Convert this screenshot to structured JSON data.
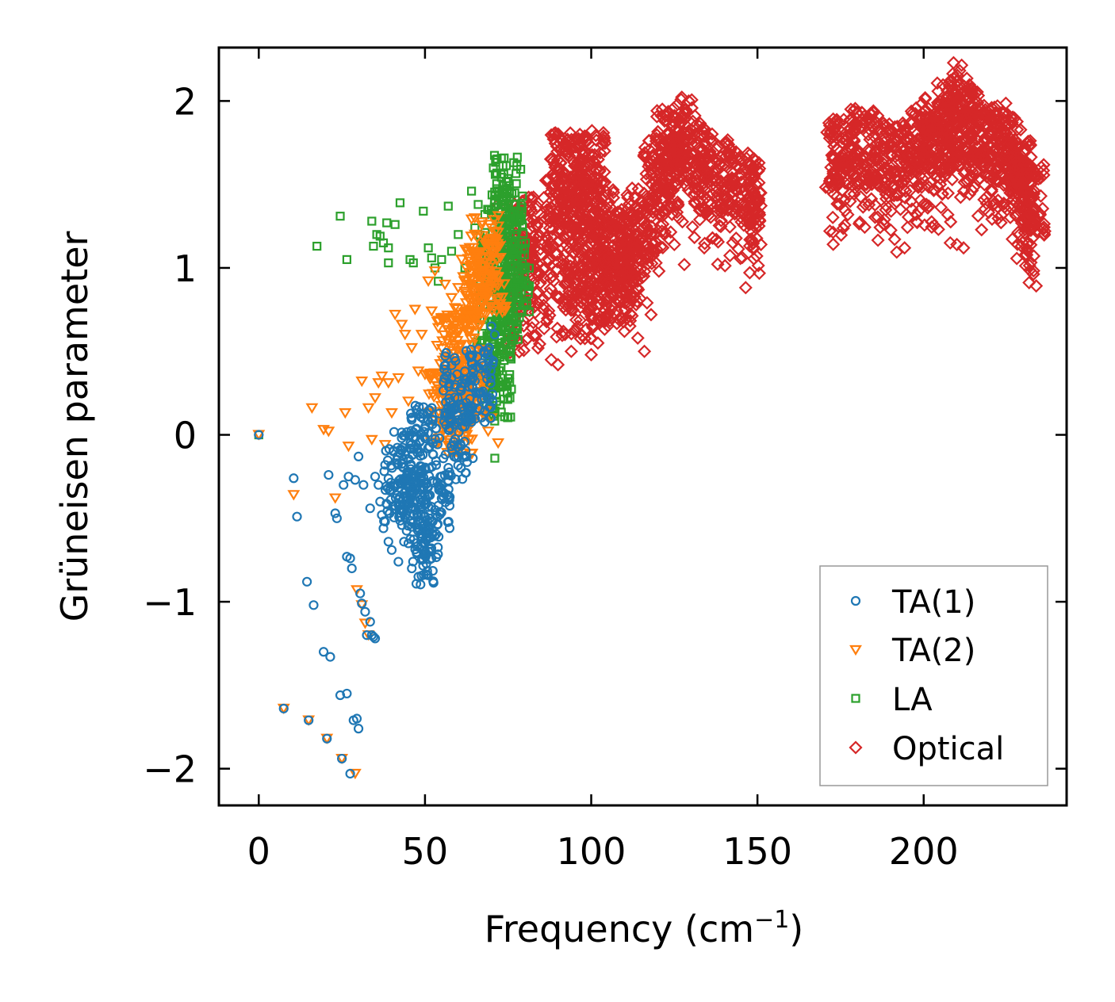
{
  "chart_data": {
    "type": "scatter",
    "xlabel": "Frequency (cm",
    "xlabel_sup": "−1",
    "xlabel_close": ")",
    "ylabel": "Grüneisen parameter",
    "xlim": [
      -12,
      243
    ],
    "ylim": [
      -2.22,
      2.32
    ],
    "xticks": [
      0,
      50,
      100,
      150,
      200
    ],
    "xtick_labels": [
      "0",
      "50",
      "100",
      "150",
      "200"
    ],
    "yticks": [
      -2,
      -1,
      0,
      1,
      2
    ],
    "ytick_labels": [
      "−2",
      "−1",
      "0",
      "1",
      "2"
    ],
    "legend_position": "lower-right",
    "series": [
      {
        "name": "TA(1)",
        "marker": "circle",
        "color": "#1f77b4",
        "points": [
          [
            0,
            0
          ],
          [
            7.5,
            -1.64
          ],
          [
            10.5,
            -0.26
          ],
          [
            11.5,
            -0.49
          ],
          [
            14.5,
            -0.88
          ],
          [
            15,
            -1.71
          ],
          [
            16.5,
            -1.02
          ],
          [
            19.5,
            -1.3
          ],
          [
            20.5,
            -1.82
          ],
          [
            21.5,
            -1.33
          ],
          [
            21,
            -0.24
          ],
          [
            23,
            -0.47
          ],
          [
            23.5,
            -0.5
          ],
          [
            24.5,
            -1.56
          ],
          [
            25,
            -1.94
          ],
          [
            25.5,
            -0.3
          ],
          [
            26.5,
            -1.55
          ],
          [
            26.5,
            -0.73
          ],
          [
            27,
            -0.25
          ],
          [
            27.5,
            -0.74
          ],
          [
            27.5,
            -2.03
          ],
          [
            28,
            -0.8
          ],
          [
            28.5,
            -1.71
          ],
          [
            29,
            -0.27
          ],
          [
            29.5,
            -1.7
          ],
          [
            30,
            -1.76
          ],
          [
            30,
            -0.13
          ],
          [
            30.5,
            -0.95
          ],
          [
            31,
            -1.01
          ],
          [
            31.5,
            -0.3
          ],
          [
            32,
            -1.06
          ],
          [
            32.5,
            -1.2
          ],
          [
            33.5,
            -1.12
          ],
          [
            33.5,
            -0.44
          ],
          [
            34,
            -1.2
          ],
          [
            34.5,
            -1.21
          ],
          [
            35,
            -1.22
          ],
          [
            35,
            -0.25
          ],
          [
            36,
            -0.3
          ],
          [
            36.5,
            -0.4
          ],
          [
            37,
            -0.48
          ],
          [
            37.5,
            -0.56
          ],
          [
            38,
            -0.52
          ],
          [
            38,
            -0.18
          ],
          [
            39,
            -0.64
          ],
          [
            40,
            -0.69
          ],
          [
            40.5,
            -0.1
          ],
          [
            41,
            -0.31
          ],
          [
            42,
            -0.76
          ],
          [
            43,
            -0.02
          ],
          [
            44,
            -0.12
          ],
          [
            45,
            -0.65
          ],
          [
            46,
            -0.44
          ],
          [
            46,
            0.09
          ],
          [
            47.5,
            -0.71
          ],
          [
            48,
            -0.85
          ],
          [
            49,
            -0.75
          ],
          [
            50,
            -0.72
          ],
          [
            52,
            -0.52
          ],
          [
            53,
            -0.45
          ],
          [
            55,
            -0.38
          ],
          [
            57,
            -0.28
          ],
          [
            60,
            -0.13
          ],
          [
            62,
            0.05
          ],
          [
            64,
            0.15
          ],
          [
            66,
            0.25
          ],
          [
            68,
            0.49
          ],
          [
            70,
            0.65
          ],
          [
            71,
            0.6
          ]
        ],
        "cloud": [
          [
            42,
            -0.3
          ],
          [
            47,
            -0.45
          ],
          [
            50,
            -0.68
          ],
          [
            53,
            -0.4
          ],
          [
            60,
            -0.05
          ],
          [
            66,
            0.3
          ],
          [
            60,
            0.3
          ],
          [
            50,
            -0.05
          ],
          [
            45,
            -0.2
          ]
        ]
      },
      {
        "name": "TA(2)",
        "marker": "triangle-down",
        "color": "#ff7f0e",
        "points": [
          [
            0,
            0
          ],
          [
            7.5,
            -1.64
          ],
          [
            10.5,
            -0.36
          ],
          [
            15,
            -1.71
          ],
          [
            16,
            0.16
          ],
          [
            19.5,
            0.03
          ],
          [
            20.5,
            -1.82
          ],
          [
            21,
            0.02
          ],
          [
            23,
            -0.38
          ],
          [
            25,
            -1.94
          ],
          [
            26,
            0.13
          ],
          [
            27,
            -0.07
          ],
          [
            29,
            -2.03
          ],
          [
            29.5,
            -0.93
          ],
          [
            31,
            -1.02
          ],
          [
            31,
            0.32
          ],
          [
            32,
            -1.13
          ],
          [
            33,
            -1.2
          ],
          [
            33,
            0.16
          ],
          [
            34,
            -0.03
          ],
          [
            35,
            0.22
          ],
          [
            36,
            0.31
          ],
          [
            37,
            0.35
          ],
          [
            38,
            -0.06
          ],
          [
            39,
            0.31
          ],
          [
            40,
            0.13
          ],
          [
            41,
            0.72
          ],
          [
            42,
            0.34
          ],
          [
            43,
            0.66
          ],
          [
            44,
            0.6
          ],
          [
            45,
            0.2
          ],
          [
            46,
            0.52
          ],
          [
            47,
            0.75
          ],
          [
            48,
            0.38
          ],
          [
            49,
            0.6
          ],
          [
            50,
            0.36
          ],
          [
            51,
            0.92
          ],
          [
            52,
            0.74
          ],
          [
            53,
            0.98
          ],
          [
            54,
            0.64
          ],
          [
            55,
            0.7
          ],
          [
            56,
            0.9
          ],
          [
            57,
            0.45
          ],
          [
            58,
            0.82
          ],
          [
            59,
            0.76
          ],
          [
            60,
            0.88
          ],
          [
            61,
            1.05
          ],
          [
            62,
            0.65
          ],
          [
            63,
            1.1
          ],
          [
            64,
            0.9
          ],
          [
            65,
            1.2
          ],
          [
            66,
            0.72
          ],
          [
            67,
            0.3
          ],
          [
            68,
            0.5
          ],
          [
            69,
            0.02
          ],
          [
            70,
            0.1
          ],
          [
            72,
            -0.05
          ]
        ],
        "cloud": [
          [
            55,
            0.15
          ],
          [
            58,
            0.5
          ],
          [
            62,
            0.55
          ],
          [
            66,
            0.9
          ],
          [
            68,
            1.1
          ],
          [
            70,
            0.95
          ],
          [
            64,
            0.3
          ],
          [
            60,
            0.1
          ]
        ]
      },
      {
        "name": "LA",
        "marker": "square",
        "color": "#2ca02c",
        "points": [
          [
            0,
            0
          ],
          [
            17.5,
            1.13
          ],
          [
            24.5,
            1.31
          ],
          [
            26.5,
            1.05
          ],
          [
            34,
            1.28
          ],
          [
            34.5,
            1.13
          ],
          [
            35.5,
            1.2
          ],
          [
            36.5,
            1.19
          ],
          [
            37.5,
            1.15
          ],
          [
            38.5,
            1.27
          ],
          [
            39,
            1.12
          ],
          [
            39,
            1.03
          ],
          [
            41,
            1.26
          ],
          [
            42.5,
            1.39
          ],
          [
            45.5,
            1.05
          ],
          [
            46.5,
            1.03
          ],
          [
            49.5,
            1.34
          ],
          [
            51,
            1.12
          ],
          [
            52,
            1.06
          ],
          [
            53,
            1.0
          ],
          [
            54,
            0.92
          ],
          [
            55,
            1.05
          ],
          [
            57,
            1.37
          ],
          [
            58,
            1.1
          ],
          [
            60,
            1.2
          ],
          [
            62,
            1.0
          ],
          [
            64,
            1.46
          ],
          [
            65,
            1.24
          ],
          [
            66,
            1.38
          ],
          [
            67,
            0.98
          ],
          [
            68,
            1.32
          ],
          [
            69,
            1.1
          ],
          [
            70,
            0.6
          ],
          [
            71,
            -0.14
          ],
          [
            72,
            1.44
          ],
          [
            73,
            1.2
          ],
          [
            74,
            1.38
          ],
          [
            75,
            1.52
          ],
          [
            76,
            0.55
          ],
          [
            77,
            1.45
          ],
          [
            78,
            0.8
          ]
        ],
        "cloud": [
          [
            70,
            0.5
          ],
          [
            73,
            1.25
          ],
          [
            75,
            1.45
          ],
          [
            77,
            0.9
          ],
          [
            72,
            0.3
          ],
          [
            74,
            0.7
          ],
          [
            76,
            1.1
          ],
          [
            71,
            1.0
          ]
        ]
      },
      {
        "name": "Optical",
        "marker": "diamond",
        "color": "#d62728",
        "points": [
          [
            69,
            0.98
          ],
          [
            72,
            1.38
          ],
          [
            75,
            1.32
          ],
          [
            78,
            1.35
          ],
          [
            82,
            1.42
          ],
          [
            84,
            0.52
          ],
          [
            86,
            1.0
          ],
          [
            88,
            0.45
          ],
          [
            90,
            0.42
          ],
          [
            92,
            1.08
          ],
          [
            94,
            0.5
          ],
          [
            96,
            0.65
          ],
          [
            98,
            1.62
          ],
          [
            100,
            0.48
          ],
          [
            102,
            0.55
          ],
          [
            104,
            1.7
          ],
          [
            106,
            0.75
          ],
          [
            110,
            0.62
          ],
          [
            114,
            0.58
          ],
          [
            116,
            0.5
          ],
          [
            118,
            0.72
          ],
          [
            120,
            1.38
          ],
          [
            122,
            1.2
          ],
          [
            125,
            1.14
          ],
          [
            126,
            1.98
          ],
          [
            128,
            1.02
          ],
          [
            131,
            1.6
          ],
          [
            134,
            1.12
          ],
          [
            136,
            1.62
          ],
          [
            139,
            1.52
          ],
          [
            143,
            1.52
          ],
          [
            147,
            1.5
          ],
          [
            151,
            1.45
          ],
          [
            173,
            1.55
          ],
          [
            176,
            1.4
          ],
          [
            180,
            1.65
          ],
          [
            185,
            1.52
          ],
          [
            190,
            1.45
          ],
          [
            195,
            1.6
          ],
          [
            200,
            1.38
          ],
          [
            205,
            1.5
          ],
          [
            208,
            1.15
          ],
          [
            210,
            1.14
          ],
          [
            212,
            1.12
          ],
          [
            214,
            1.8
          ],
          [
            218,
            1.6
          ],
          [
            222,
            1.52
          ],
          [
            226,
            1.45
          ],
          [
            230,
            1.4
          ],
          [
            233,
            1.35
          ]
        ],
        "cloud": [
          [
            80,
            1.2
          ],
          [
            90,
            1.35
          ],
          [
            95,
            1.55
          ],
          [
            100,
            1.3
          ],
          [
            105,
            1.1
          ],
          [
            110,
            1.0
          ],
          [
            115,
            1.25
          ],
          [
            120,
            1.55
          ],
          [
            124,
            1.75
          ],
          [
            130,
            1.7
          ],
          [
            138,
            1.55
          ],
          [
            146,
            1.48
          ],
          [
            175,
            1.7
          ],
          [
            182,
            1.72
          ],
          [
            190,
            1.65
          ],
          [
            198,
            1.7
          ],
          [
            204,
            1.78
          ],
          [
            208,
            1.9
          ],
          [
            212,
            1.85
          ],
          [
            218,
            1.75
          ],
          [
            224,
            1.72
          ],
          [
            228,
            1.55
          ],
          [
            232,
            1.42
          ],
          [
            96,
            0.8
          ],
          [
            102,
            0.9
          ],
          [
            108,
            0.85
          ],
          [
            92,
            1.6
          ],
          [
            100,
            1.6
          ]
        ],
        "ridges": [
          [
            75,
            1.0,
            80,
            1.0,
            86,
            1.1,
            93,
            1.25,
            98,
            1.35,
            104,
            1.4,
            110,
            1.2,
            117,
            1.4,
            123,
            1.65,
            127,
            1.9,
            133,
            1.75,
            140,
            1.55,
            148,
            1.47,
            151,
            1.45
          ],
          [
            172,
            1.7,
            178,
            1.78,
            186,
            1.7,
            194,
            1.72,
            200,
            1.85,
            206,
            1.8,
            210,
            2.05,
            214,
            1.9,
            220,
            1.82,
            226,
            1.8,
            231,
            1.5,
            233,
            1.36
          ]
        ]
      }
    ]
  }
}
